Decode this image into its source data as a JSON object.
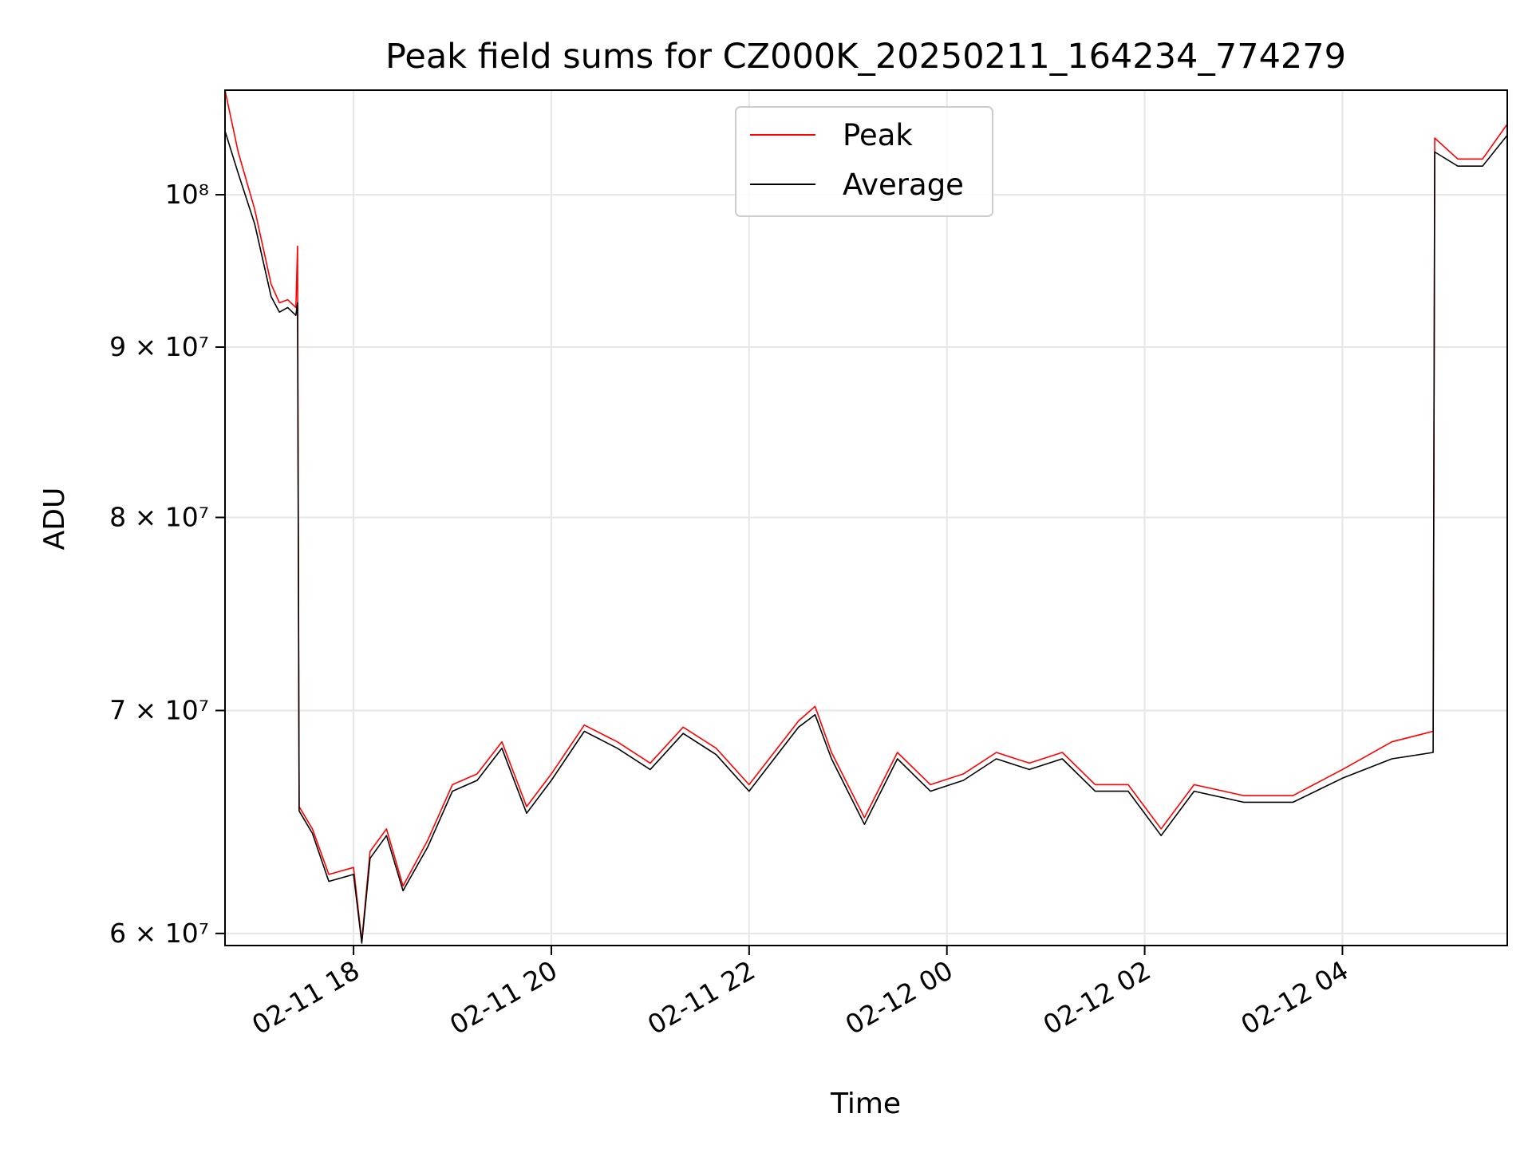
{
  "chart_data": {
    "type": "line",
    "title": "Peak field sums for CZ000K_20250211_164234_774279",
    "xlabel": "Time",
    "ylabel": "ADU",
    "x_range": [
      "2025-02-11T16:42",
      "2025-02-12T05:40"
    ],
    "ylim": [
      59500000,
      107500000
    ],
    "y_scale": "log",
    "grid": true,
    "legend": {
      "placement": "top-center",
      "entries": [
        "Peak",
        "Average"
      ]
    },
    "x_ticks": [
      {
        "time": "2025-02-11T18:00",
        "label": "02-11 18"
      },
      {
        "time": "2025-02-11T20:00",
        "label": "02-11 20"
      },
      {
        "time": "2025-02-11T22:00",
        "label": "02-11 22"
      },
      {
        "time": "2025-02-12T00:00",
        "label": "02-12 00"
      },
      {
        "time": "2025-02-12T02:00",
        "label": "02-12 02"
      },
      {
        "time": "2025-02-12T04:00",
        "label": "02-12 04"
      }
    ],
    "y_ticks": [
      {
        "value": 60000000,
        "label": "6 × 10⁷"
      },
      {
        "value": 70000000,
        "label": "7 × 10⁷"
      },
      {
        "value": 80000000,
        "label": "8 × 10⁷"
      },
      {
        "value": 90000000,
        "label": "9 × 10⁷"
      },
      {
        "value": 100000000,
        "label": "10⁸"
      }
    ],
    "series": [
      {
        "name": "Peak",
        "color": "#ff0000",
        "x": [
          "2025-02-11T16:42",
          "2025-02-11T16:50",
          "2025-02-11T17:00",
          "2025-02-11T17:10",
          "2025-02-11T17:15",
          "2025-02-11T17:20",
          "2025-02-11T17:25",
          "2025-02-11T17:26",
          "2025-02-11T17:27",
          "2025-02-11T17:35",
          "2025-02-11T17:45",
          "2025-02-11T18:00",
          "2025-02-11T18:05",
          "2025-02-11T18:10",
          "2025-02-11T18:20",
          "2025-02-11T18:30",
          "2025-02-11T18:45",
          "2025-02-11T19:00",
          "2025-02-11T19:15",
          "2025-02-11T19:30",
          "2025-02-11T19:45",
          "2025-02-11T20:00",
          "2025-02-11T20:20",
          "2025-02-11T20:40",
          "2025-02-11T21:00",
          "2025-02-11T21:20",
          "2025-02-11T21:40",
          "2025-02-11T22:00",
          "2025-02-11T22:30",
          "2025-02-11T22:40",
          "2025-02-11T22:50",
          "2025-02-11T23:10",
          "2025-02-11T23:30",
          "2025-02-11T23:50",
          "2025-02-12T00:10",
          "2025-02-12T00:30",
          "2025-02-12T00:50",
          "2025-02-12T01:10",
          "2025-02-12T01:30",
          "2025-02-12T01:50",
          "2025-02-12T02:10",
          "2025-02-12T02:30",
          "2025-02-12T03:00",
          "2025-02-12T03:30",
          "2025-02-12T04:00",
          "2025-02-12T04:30",
          "2025-02-12T04:55",
          "2025-02-12T04:56",
          "2025-02-12T05:10",
          "2025-02-12T05:25",
          "2025-02-12T05:40"
        ],
        "y": [
          107500000,
          103000000,
          99000000,
          94000000,
          92800000,
          93000000,
          92500000,
          96500000,
          65500000,
          64500000,
          62500000,
          62800000,
          59700000,
          63500000,
          64500000,
          62000000,
          64000000,
          66500000,
          67000000,
          68500000,
          65500000,
          67000000,
          69300000,
          68500000,
          67500000,
          69200000,
          68200000,
          66500000,
          69500000,
          70200000,
          68000000,
          65000000,
          68000000,
          66500000,
          67000000,
          68000000,
          67500000,
          68000000,
          66500000,
          66500000,
          64500000,
          66500000,
          66000000,
          66000000,
          67200000,
          68500000,
          69000000,
          104000000,
          102500000,
          102500000,
          105000000
        ]
      },
      {
        "name": "Average",
        "color": "#000000",
        "x": [
          "2025-02-11T16:42",
          "2025-02-11T16:50",
          "2025-02-11T17:00",
          "2025-02-11T17:10",
          "2025-02-11T17:15",
          "2025-02-11T17:20",
          "2025-02-11T17:25",
          "2025-02-11T17:26",
          "2025-02-11T17:27",
          "2025-02-11T17:35",
          "2025-02-11T17:45",
          "2025-02-11T18:00",
          "2025-02-11T18:05",
          "2025-02-11T18:10",
          "2025-02-11T18:20",
          "2025-02-11T18:30",
          "2025-02-11T18:45",
          "2025-02-11T19:00",
          "2025-02-11T19:15",
          "2025-02-11T19:30",
          "2025-02-11T19:45",
          "2025-02-11T20:00",
          "2025-02-11T20:20",
          "2025-02-11T20:40",
          "2025-02-11T21:00",
          "2025-02-11T21:20",
          "2025-02-11T21:40",
          "2025-02-11T22:00",
          "2025-02-11T22:30",
          "2025-02-11T22:40",
          "2025-02-11T22:50",
          "2025-02-11T23:10",
          "2025-02-11T23:30",
          "2025-02-11T23:50",
          "2025-02-12T00:10",
          "2025-02-12T00:30",
          "2025-02-12T00:50",
          "2025-02-12T01:10",
          "2025-02-12T01:30",
          "2025-02-12T01:50",
          "2025-02-12T02:10",
          "2025-02-12T02:30",
          "2025-02-12T03:00",
          "2025-02-12T03:30",
          "2025-02-12T04:00",
          "2025-02-12T04:30",
          "2025-02-12T04:55",
          "2025-02-12T04:56",
          "2025-02-12T05:10",
          "2025-02-12T05:25",
          "2025-02-12T05:40"
        ],
        "y": [
          104500000,
          101500000,
          98000000,
          93200000,
          92200000,
          92500000,
          92000000,
          92800000,
          65300000,
          64300000,
          62200000,
          62500000,
          59600000,
          63200000,
          64200000,
          61800000,
          63700000,
          66200000,
          66700000,
          68200000,
          65200000,
          66700000,
          69000000,
          68200000,
          67200000,
          68900000,
          67900000,
          66200000,
          69200000,
          69800000,
          67700000,
          64700000,
          67700000,
          66200000,
          66700000,
          67700000,
          67200000,
          67700000,
          66200000,
          66200000,
          64200000,
          66200000,
          65700000,
          65700000,
          66800000,
          67700000,
          68000000,
          103000000,
          102000000,
          102000000,
          104200000
        ]
      }
    ]
  }
}
